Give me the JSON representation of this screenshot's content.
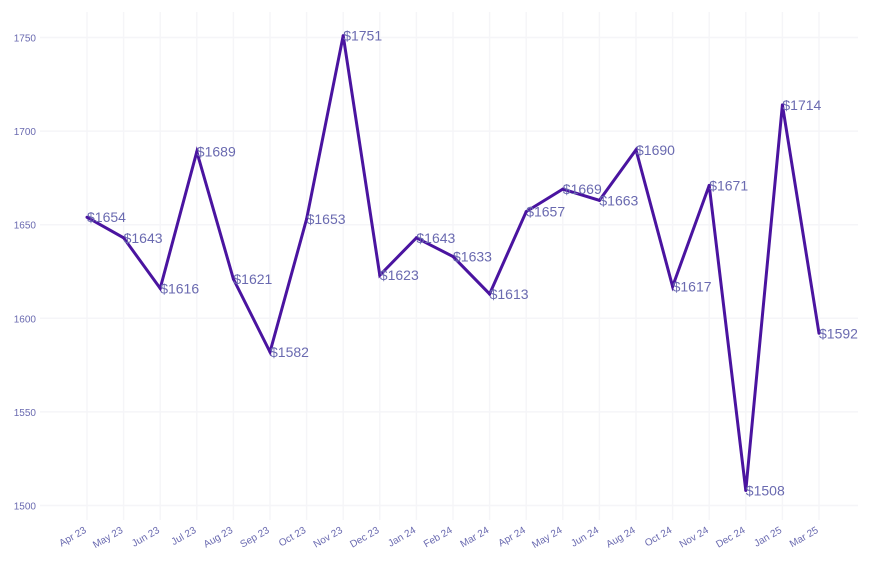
{
  "chart_data": {
    "type": "line",
    "title": "",
    "xlabel": "",
    "ylabel": "",
    "categories": [
      "Apr 23",
      "May 23",
      "Jun 23",
      "Jul 23",
      "Aug 23",
      "Sep 23",
      "Oct 23",
      "Nov 23",
      "Dec 23",
      "Jan 24",
      "Feb 24",
      "Mar 24",
      "Apr 24",
      "May 24",
      "Jun 24",
      "Aug 24",
      "Oct 24",
      "Nov 24",
      "Dec 24",
      "Jan 25",
      "Mar 25"
    ],
    "series": [
      {
        "values": [
          1654,
          1643,
          1616,
          1689,
          1621,
          1582,
          1653,
          1751,
          1623,
          1643,
          1633,
          1613,
          1657,
          1669,
          1663,
          1690,
          1617,
          1671,
          1508,
          1714,
          1592
        ],
        "data_labels": [
          "$1654",
          "$1643",
          "$1616",
          "$1689",
          "$1621",
          "$1582",
          "$1653",
          "$1751",
          "$1623",
          "$1643",
          "$1633",
          "$1613",
          "$1657",
          "$1669",
          "$1663",
          "$1690",
          "$1617",
          "$1671",
          "$1508",
          "$1714",
          "$1592"
        ]
      }
    ],
    "ylim": [
      1500,
      1755
    ],
    "yticks": [
      1500,
      1550,
      1600,
      1650,
      1700,
      1750
    ],
    "grid": true,
    "legend": "none",
    "colors": {
      "line": "#4a14a0",
      "labels": "#6a6ab0",
      "grid": "#f5f5f8"
    }
  }
}
